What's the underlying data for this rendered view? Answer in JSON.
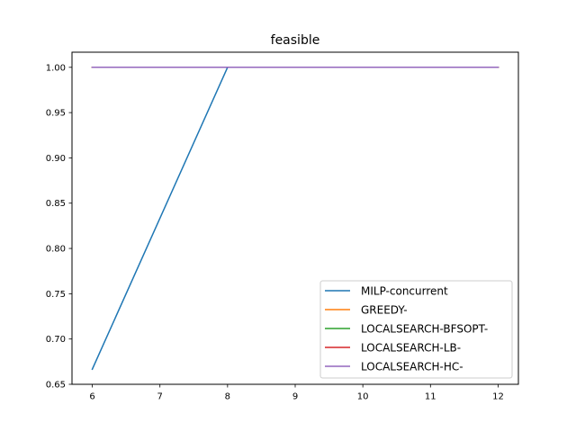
{
  "chart_data": {
    "type": "line",
    "title": "feasible",
    "xlabel": "",
    "ylabel": "",
    "xlim": [
      5.7,
      12.3
    ],
    "ylim": [
      0.65,
      1.0167
    ],
    "xticks": [
      6,
      7,
      8,
      9,
      10,
      11,
      12
    ],
    "yticks": [
      0.65,
      0.7,
      0.75,
      0.8,
      0.85,
      0.9,
      0.95,
      1.0
    ],
    "ytick_labels": [
      "0.65",
      "0.70",
      "0.75",
      "0.80",
      "0.85",
      "0.90",
      "0.95",
      "1.00"
    ],
    "grid": false,
    "legend_position": "lower-right",
    "series": [
      {
        "name": "MILP-concurrent",
        "color": "#1f77b4",
        "x": [
          6,
          8,
          10,
          12
        ],
        "y": [
          0.6667,
          1.0,
          1.0,
          1.0
        ]
      },
      {
        "name": "GREEDY-",
        "color": "#ff7f0e",
        "x": [
          6,
          8,
          10,
          12
        ],
        "y": [
          1.0,
          1.0,
          1.0,
          1.0
        ]
      },
      {
        "name": "LOCALSEARCH-BFSOPT-",
        "color": "#2ca02c",
        "x": [
          6,
          8,
          10,
          12
        ],
        "y": [
          1.0,
          1.0,
          1.0,
          1.0
        ]
      },
      {
        "name": "LOCALSEARCH-LB-",
        "color": "#d62728",
        "x": [
          6,
          8,
          10,
          12
        ],
        "y": [
          1.0,
          1.0,
          1.0,
          1.0
        ]
      },
      {
        "name": "LOCALSEARCH-HC-",
        "color": "#9467bd",
        "x": [
          6,
          8,
          10,
          12
        ],
        "y": [
          1.0,
          1.0,
          1.0,
          1.0
        ]
      }
    ]
  }
}
